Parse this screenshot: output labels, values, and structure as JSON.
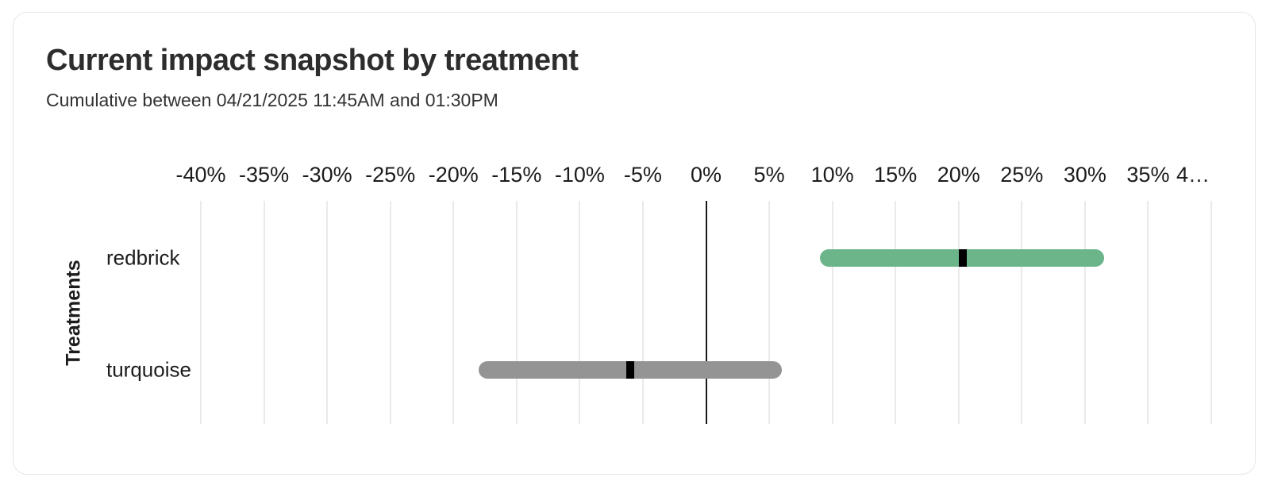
{
  "card": {
    "title": "Current impact snapshot by treatment",
    "subtitle": "Cumulative between 04/21/2025 11:45AM and 01:30PM"
  },
  "chart_data": {
    "type": "bar",
    "subtype": "horizontal-range-bar-with-point-estimate",
    "title": "Current impact snapshot by treatment",
    "subtitle": "Cumulative between 04/21/2025 11:45AM and 01:30PM",
    "xlabel": "",
    "ylabel": "Treatments",
    "x_unit": "percent",
    "xlim": [
      -40,
      40
    ],
    "x_ticks": [
      -40,
      -35,
      -30,
      -25,
      -20,
      -15,
      -10,
      -5,
      0,
      5,
      10,
      15,
      20,
      25,
      30,
      35,
      40
    ],
    "x_tick_labels": [
      "-40%",
      "-35%",
      "-30%",
      "-25%",
      "-20%",
      "-15%",
      "-10%",
      "-5%",
      "0%",
      "5%",
      "10%",
      "15%",
      "20%",
      "25%",
      "30%",
      "35%",
      "4…"
    ],
    "grid": "vertical gridlines every 5%",
    "legend": "none",
    "categories": [
      "redbrick",
      "turquoise"
    ],
    "series": [
      {
        "name": "redbrick",
        "low": 9,
        "high": 31.5,
        "estimate": 20.3,
        "bar_color": "#6cb58a"
      },
      {
        "name": "turquoise",
        "low": -18,
        "high": 6,
        "estimate": -6,
        "bar_color": "#949494"
      }
    ],
    "estimate_marker_color": "#000000",
    "zero_axis_color": "#1a1a1a",
    "gridline_color": "#eaeaea"
  }
}
